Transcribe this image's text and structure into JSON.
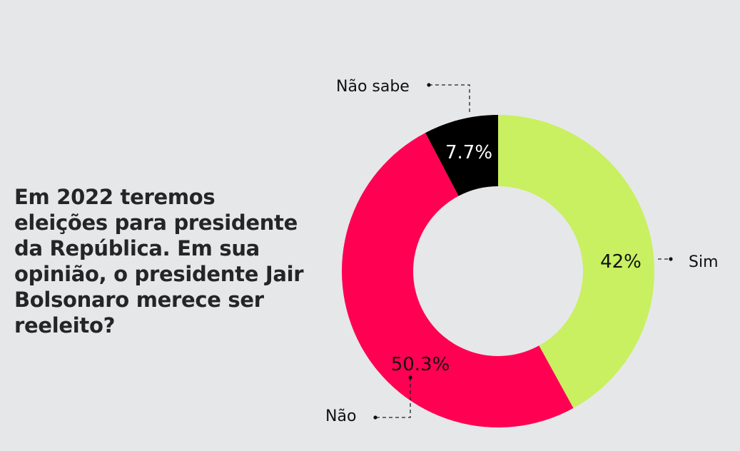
{
  "question": "Em 2022 teremos eleições para presidente da República. Em sua opinião, o presidente Jair Bolsonaro merece ser reeleito?",
  "chart_data": {
    "type": "pie",
    "variant": "donut",
    "title": "Em 2022 teremos eleições para presidente da República. Em sua opinião, o presidente Jair Bolsonaro merece ser reeleito?",
    "start": "top",
    "direction": "clockwise",
    "slices": [
      {
        "name": "Sim",
        "value": 42.0,
        "label": "42%",
        "color": "#c8f060",
        "label_color": "#111111"
      },
      {
        "name": "Não",
        "value": 50.3,
        "label": "50.3%",
        "color": "#ff0052",
        "label_color": "#111111"
      },
      {
        "name": "Não sabe",
        "value": 7.7,
        "label": "7.7%",
        "color": "#000000",
        "label_color": "#ffffff"
      }
    ]
  }
}
